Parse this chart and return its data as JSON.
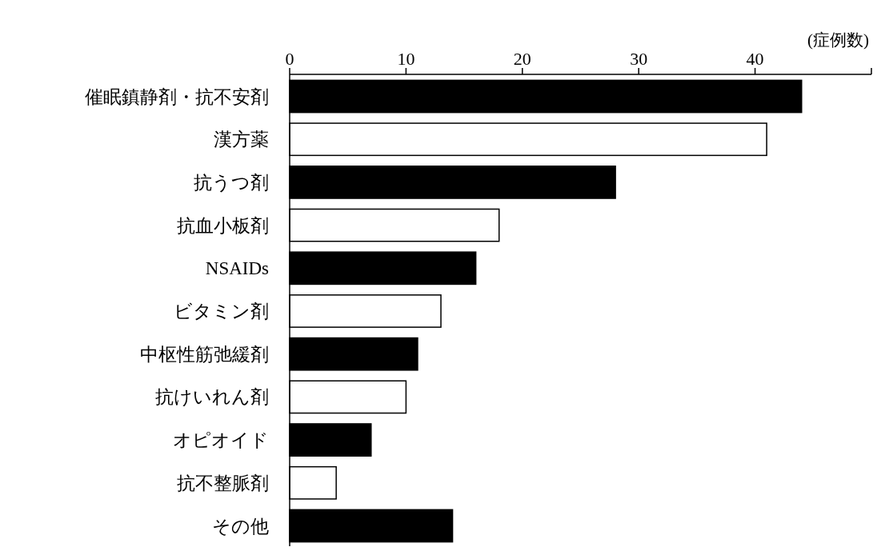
{
  "chart_data": {
    "type": "bar",
    "orientation": "horizontal",
    "xlabel": "(症例数)",
    "categories": [
      "催眠鎮静剤・抗不安剤",
      "漢方薬",
      "抗うつ剤",
      "抗血小板剤",
      "NSAIDs",
      "ビタミン剤",
      "中枢性筋弛緩剤",
      "抗けいれん剤",
      "オピオイド",
      "抗不整脈剤",
      "その他"
    ],
    "values": [
      44,
      41,
      28,
      18,
      16,
      13,
      11,
      10,
      7,
      4,
      14
    ],
    "colors": [
      "#000000",
      "#ffffff",
      "#000000",
      "#ffffff",
      "#000000",
      "#ffffff",
      "#000000",
      "#ffffff",
      "#000000",
      "#ffffff",
      "#000000"
    ],
    "xlim": [
      0,
      50
    ],
    "xticks": [
      0,
      10,
      20,
      30,
      40,
      {
        "value": 50,
        "label": null
      }
    ],
    "grid": false
  }
}
